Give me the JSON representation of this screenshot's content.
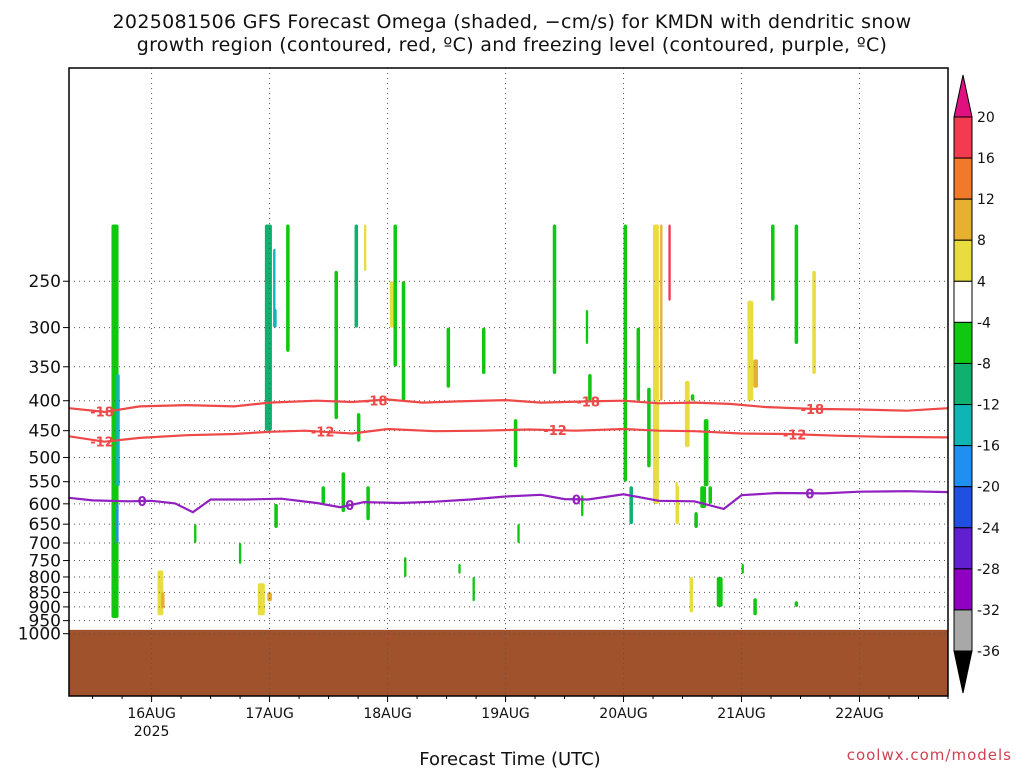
{
  "chart_data": {
    "type": "heatmap",
    "title_line1": "2025081506 GFS Forecast Omega (shaded, −cm/s) for KMDN with dendritic snow",
    "title_line2": "growth region (contoured, red, ºC) and freezing level (contoured, purple, ºC)",
    "xlabel": "Forecast Time (UTC)",
    "credit": "coolwx.com/models",
    "y_ticks": [
      250,
      300,
      350,
      400,
      450,
      500,
      550,
      600,
      650,
      700,
      750,
      800,
      850,
      900,
      950,
      1000
    ],
    "y_range_hpa": [
      200,
      1000
    ],
    "x_range_days": [
      15.3,
      22.75
    ],
    "x_ticks": [
      {
        "day": 16,
        "label": "16AUG",
        "sub": "2025"
      },
      {
        "day": 17,
        "label": "17AUG",
        "sub": ""
      },
      {
        "day": 18,
        "label": "18AUG",
        "sub": ""
      },
      {
        "day": 19,
        "label": "19AUG",
        "sub": ""
      },
      {
        "day": 20,
        "label": "20AUG",
        "sub": ""
      },
      {
        "day": 21,
        "label": "21AUG",
        "sub": ""
      },
      {
        "day": 22,
        "label": "22AUG",
        "sub": ""
      }
    ],
    "grid": true,
    "colorbar": {
      "tick_labels": [
        "20",
        "16",
        "12",
        "8",
        "4",
        "-4",
        "-8",
        "-12",
        "-16",
        "-20",
        "-24",
        "-28",
        "-32",
        "-36"
      ],
      "colors_top_to_bottom": [
        "#f23a50",
        "#f07a2a",
        "#e8b030",
        "#e8dc40",
        "#ffffff",
        "#10c810",
        "#10b070",
        "#10b4b4",
        "#2090f0",
        "#2050e0",
        "#6020d0",
        "#9000c0",
        "#a8a8a8"
      ],
      "top_arrow_color": "#e01080",
      "bottom_arrow_color": "#000000"
    },
    "contours": [
      {
        "name": "-18",
        "color": "#ee4848",
        "label": "-18",
        "points": [
          [
            15.3,
            412
          ],
          [
            15.6,
            418
          ],
          [
            15.9,
            409
          ],
          [
            16.3,
            407
          ],
          [
            16.7,
            409
          ],
          [
            17.0,
            403
          ],
          [
            17.4,
            400
          ],
          [
            17.7,
            402
          ],
          [
            18.0,
            398
          ],
          [
            18.3,
            403
          ],
          [
            18.6,
            401
          ],
          [
            19.0,
            399
          ],
          [
            19.3,
            403
          ],
          [
            19.7,
            401
          ],
          [
            20.0,
            400
          ],
          [
            20.3,
            404
          ],
          [
            20.6,
            403
          ],
          [
            20.9,
            405
          ],
          [
            21.2,
            410
          ],
          [
            21.6,
            413
          ],
          [
            22.0,
            414
          ],
          [
            22.4,
            416
          ],
          [
            22.75,
            412
          ]
        ],
        "labels_at": [
          15.58,
          17.9,
          19.7,
          21.6
        ]
      },
      {
        "name": "-12",
        "color": "#ee4848",
        "label": "-12",
        "points": [
          [
            15.3,
            460
          ],
          [
            15.6,
            470
          ],
          [
            15.9,
            463
          ],
          [
            16.3,
            458
          ],
          [
            16.7,
            456
          ],
          [
            17.0,
            452
          ],
          [
            17.3,
            450
          ],
          [
            17.7,
            455
          ],
          [
            18.0,
            447
          ],
          [
            18.4,
            451
          ],
          [
            18.8,
            450
          ],
          [
            19.2,
            448
          ],
          [
            19.6,
            450
          ],
          [
            20.0,
            447
          ],
          [
            20.3,
            450
          ],
          [
            20.6,
            451
          ],
          [
            21.0,
            455
          ],
          [
            21.4,
            456
          ],
          [
            21.8,
            459
          ],
          [
            22.2,
            461
          ],
          [
            22.75,
            462
          ]
        ],
        "labels_at": [
          15.58,
          17.45,
          19.42,
          21.45
        ]
      },
      {
        "name": "0",
        "color": "#9020c0",
        "label": "0",
        "points": [
          [
            15.3,
            586
          ],
          [
            15.5,
            592
          ],
          [
            15.8,
            594
          ],
          [
            16.0,
            593
          ],
          [
            16.2,
            599
          ],
          [
            16.35,
            620
          ],
          [
            16.5,
            590
          ],
          [
            16.8,
            590
          ],
          [
            17.1,
            588
          ],
          [
            17.4,
            598
          ],
          [
            17.6,
            608
          ],
          [
            17.8,
            596
          ],
          [
            18.1,
            598
          ],
          [
            18.4,
            595
          ],
          [
            18.7,
            590
          ],
          [
            19.0,
            583
          ],
          [
            19.3,
            579
          ],
          [
            19.5,
            589
          ],
          [
            19.7,
            590
          ],
          [
            20.0,
            578
          ],
          [
            20.3,
            593
          ],
          [
            20.6,
            594
          ],
          [
            20.85,
            612
          ],
          [
            21.0,
            580
          ],
          [
            21.3,
            575
          ],
          [
            21.7,
            576
          ],
          [
            22.0,
            572
          ],
          [
            22.4,
            571
          ],
          [
            22.75,
            573
          ]
        ],
        "labels_at": [
          15.92,
          17.68,
          19.6,
          21.58
        ]
      }
    ],
    "omega_cells_note": "shaded omega regions approximated as cells: [day_start, day_end, hPa_top, hPa_bottom, bin_index]",
    "omega_cells": [
      [
        15.66,
        15.72,
        200,
        940,
        5
      ],
      [
        15.7,
        15.73,
        360,
        560,
        7
      ],
      [
        15.7,
        15.72,
        600,
        700,
        8
      ],
      [
        16.96,
        17.02,
        200,
        450,
        6
      ],
      [
        17.03,
        17.06,
        220,
        300,
        7
      ],
      [
        17.04,
        17.07,
        600,
        660,
        5
      ],
      [
        17.55,
        17.58,
        240,
        430,
        5
      ],
      [
        17.72,
        17.75,
        200,
        300,
        6
      ],
      [
        17.74,
        17.77,
        420,
        470,
        5
      ],
      [
        17.61,
        17.64,
        530,
        620,
        5
      ],
      [
        17.82,
        17.85,
        560,
        640,
        5
      ],
      [
        18.05,
        18.08,
        200,
        350,
        5
      ],
      [
        18.12,
        18.15,
        250,
        400,
        5
      ],
      [
        18.14,
        18.16,
        740,
        800,
        5
      ],
      [
        18.5,
        18.53,
        300,
        380,
        5
      ],
      [
        18.6,
        18.62,
        760,
        790,
        5
      ],
      [
        18.72,
        18.74,
        800,
        880,
        5
      ],
      [
        19.07,
        19.1,
        430,
        520,
        5
      ],
      [
        19.1,
        19.12,
        650,
        700,
        5
      ],
      [
        19.4,
        19.43,
        200,
        360,
        5
      ],
      [
        19.68,
        19.7,
        280,
        320,
        5
      ],
      [
        19.7,
        19.73,
        360,
        400,
        5
      ],
      [
        20.0,
        20.03,
        200,
        550,
        5
      ],
      [
        20.05,
        20.08,
        560,
        650,
        6
      ],
      [
        20.11,
        20.14,
        300,
        400,
        5
      ],
      [
        20.2,
        20.23,
        380,
        520,
        5
      ],
      [
        20.25,
        20.28,
        540,
        580,
        5
      ],
      [
        20.6,
        20.63,
        620,
        660,
        5
      ],
      [
        20.68,
        20.72,
        430,
        560,
        5
      ],
      [
        20.72,
        20.75,
        560,
        600,
        5
      ],
      [
        21.25,
        21.28,
        200,
        270,
        5
      ],
      [
        21.45,
        21.48,
        880,
        900,
        5
      ],
      [
        20.57,
        20.6,
        390,
        400,
        5
      ],
      [
        20.65,
        20.7,
        560,
        610,
        5
      ],
      [
        20.79,
        20.84,
        800,
        900,
        5
      ],
      [
        16.05,
        16.1,
        780,
        930,
        3
      ],
      [
        16.08,
        16.11,
        850,
        905,
        2
      ],
      [
        16.9,
        16.96,
        820,
        930,
        3
      ],
      [
        16.98,
        17.02,
        850,
        880,
        2
      ],
      [
        20.25,
        20.3,
        200,
        600,
        3
      ],
      [
        20.31,
        20.33,
        200,
        400,
        2
      ],
      [
        20.38,
        20.4,
        200,
        270,
        0
      ],
      [
        20.44,
        20.47,
        550,
        650,
        3
      ],
      [
        20.56,
        20.59,
        800,
        920,
        3
      ],
      [
        20.52,
        20.56,
        370,
        480,
        3
      ],
      [
        21.05,
        21.1,
        270,
        400,
        3
      ],
      [
        21.1,
        21.14,
        340,
        380,
        2
      ],
      [
        21.6,
        21.63,
        240,
        360,
        3
      ],
      [
        17.8,
        17.82,
        200,
        240,
        3
      ],
      [
        18.02,
        18.05,
        250,
        300,
        3
      ],
      [
        15.85,
        15.9,
        200,
        260,
        4
      ],
      [
        15.86,
        15.93,
        740,
        960,
        4
      ],
      [
        16.2,
        16.28,
        260,
        330,
        4
      ],
      [
        16.3,
        16.36,
        230,
        300,
        4
      ],
      [
        16.4,
        16.46,
        700,
        780,
        4
      ],
      [
        16.55,
        16.62,
        330,
        420,
        4
      ],
      [
        16.7,
        16.78,
        240,
        310,
        4
      ],
      [
        16.84,
        16.9,
        460,
        520,
        4
      ],
      [
        17.05,
        17.1,
        200,
        280,
        4
      ],
      [
        17.1,
        17.15,
        500,
        620,
        4
      ],
      [
        17.18,
        17.24,
        700,
        800,
        4
      ],
      [
        17.3,
        17.36,
        200,
        260,
        4
      ],
      [
        17.4,
        17.47,
        870,
        930,
        4
      ],
      [
        17.5,
        17.56,
        600,
        680,
        4
      ],
      [
        17.6,
        17.68,
        250,
        300,
        4
      ],
      [
        17.68,
        17.72,
        470,
        520,
        4
      ],
      [
        17.75,
        17.8,
        550,
        640,
        4
      ],
      [
        17.9,
        17.96,
        860,
        900,
        4
      ],
      [
        18.2,
        18.26,
        270,
        330,
        4
      ],
      [
        18.28,
        18.34,
        420,
        520,
        4
      ],
      [
        18.35,
        18.4,
        200,
        260,
        4
      ],
      [
        18.4,
        18.46,
        680,
        760,
        4
      ],
      [
        18.6,
        18.66,
        220,
        290,
        4
      ],
      [
        18.66,
        18.72,
        560,
        640,
        4
      ],
      [
        18.8,
        18.86,
        860,
        900,
        4
      ],
      [
        18.95,
        19.02,
        270,
        340,
        4
      ],
      [
        19.05,
        19.1,
        520,
        600,
        4
      ],
      [
        19.2,
        19.26,
        200,
        260,
        4
      ],
      [
        19.28,
        19.34,
        900,
        950,
        4
      ],
      [
        19.5,
        19.56,
        300,
        360,
        4
      ],
      [
        19.6,
        19.66,
        200,
        280,
        4
      ],
      [
        19.75,
        19.82,
        240,
        320,
        4
      ],
      [
        19.82,
        19.88,
        560,
        660,
        4
      ],
      [
        19.88,
        19.95,
        820,
        920,
        4
      ],
      [
        20.1,
        20.16,
        200,
        300,
        4
      ],
      [
        20.3,
        20.36,
        700,
        800,
        4
      ],
      [
        20.46,
        20.5,
        440,
        560,
        4
      ],
      [
        20.62,
        20.68,
        200,
        280,
        4
      ],
      [
        20.7,
        20.76,
        640,
        700,
        4
      ],
      [
        20.88,
        20.94,
        880,
        900,
        4
      ],
      [
        21.0,
        21.06,
        200,
        240,
        4
      ],
      [
        21.25,
        21.3,
        330,
        380,
        4
      ],
      [
        21.4,
        21.46,
        540,
        580,
        4
      ],
      [
        21.7,
        21.76,
        520,
        600,
        4
      ],
      [
        21.95,
        22.0,
        300,
        380,
        4
      ],
      [
        22.05,
        22.1,
        890,
        940,
        4
      ],
      [
        22.1,
        22.16,
        350,
        460,
        4
      ],
      [
        22.2,
        22.26,
        590,
        620,
        4
      ],
      [
        22.3,
        22.36,
        790,
        830,
        4
      ],
      [
        22.4,
        22.46,
        300,
        420,
        4
      ],
      [
        22.45,
        22.5,
        250,
        270,
        4
      ],
      [
        22.05,
        22.1,
        900,
        940,
        4
      ],
      [
        16.36,
        16.38,
        650,
        700,
        5
      ],
      [
        16.74,
        16.76,
        700,
        760,
        5
      ],
      [
        17.14,
        17.17,
        200,
        330,
        5
      ],
      [
        17.44,
        17.47,
        560,
        600,
        5
      ],
      [
        18.8,
        18.83,
        300,
        360,
        5
      ],
      [
        19.64,
        19.66,
        580,
        630,
        5
      ],
      [
        21.0,
        21.02,
        760,
        790,
        5
      ],
      [
        21.1,
        21.13,
        870,
        930,
        5
      ],
      [
        21.45,
        21.48,
        200,
        320,
        5
      ]
    ],
    "ground_hpa": 985
  }
}
